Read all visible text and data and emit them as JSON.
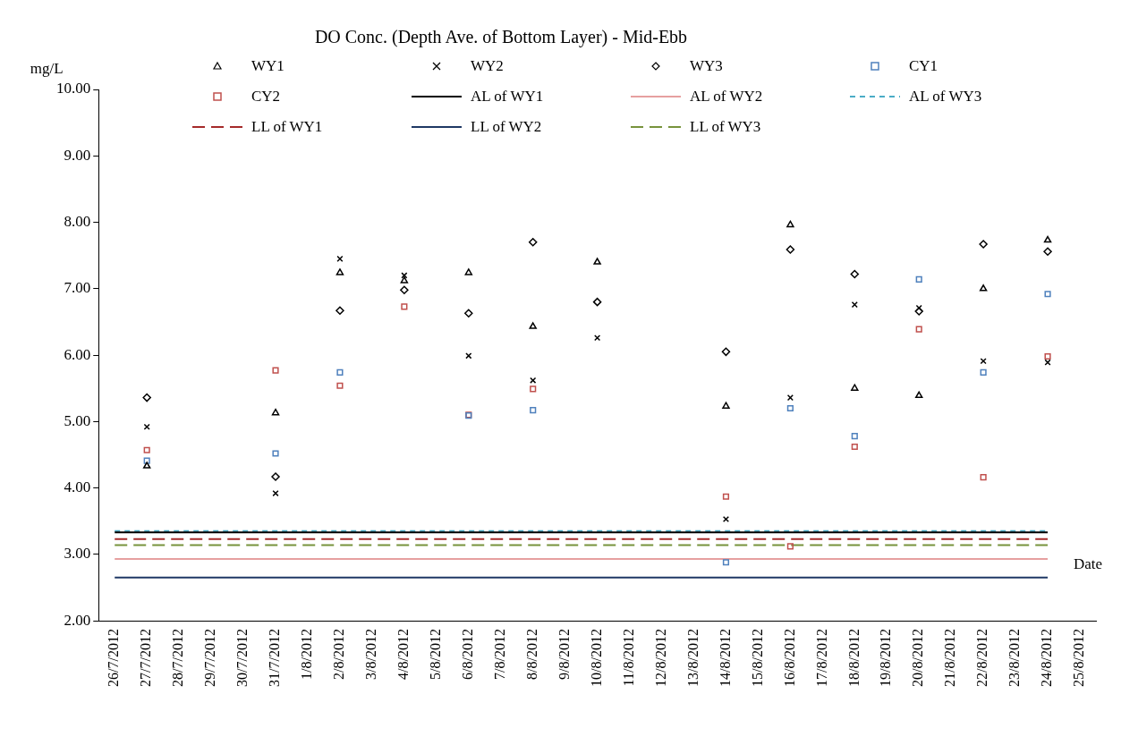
{
  "chart_data": {
    "type": "scatter",
    "title": "DO Conc. (Depth Ave. of Bottom Layer) - Mid-Ebb",
    "xlabel": "Date",
    "ylabel": "mg/L",
    "categories": [
      "26/7/2012",
      "27/7/2012",
      "28/7/2012",
      "29/7/2012",
      "30/7/2012",
      "31/7/2012",
      "1/8/2012",
      "2/8/2012",
      "3/8/2012",
      "4/8/2012",
      "5/8/2012",
      "6/8/2012",
      "7/8/2012",
      "8/8/2012",
      "9/8/2012",
      "10/8/2012",
      "11/8/2012",
      "12/8/2012",
      "13/8/2012",
      "14/8/2012",
      "15/8/2012",
      "16/8/2012",
      "17/8/2012",
      "18/8/2012",
      "19/8/2012",
      "20/8/2012",
      "21/8/2012",
      "22/8/2012",
      "23/8/2012",
      "24/8/2012",
      "25/8/2012"
    ],
    "ylim": [
      2,
      10
    ],
    "yticks": [
      {
        "value": 2,
        "label": "2.00"
      },
      {
        "value": 3,
        "label": "3.00"
      },
      {
        "value": 4,
        "label": "4.00"
      },
      {
        "value": 5,
        "label": "5.00"
      },
      {
        "value": 6,
        "label": "6.00"
      },
      {
        "value": 7,
        "label": "7.00"
      },
      {
        "value": 8,
        "label": "8.00"
      },
      {
        "value": 9,
        "label": "9.00"
      },
      {
        "value": 10,
        "label": "10.00"
      }
    ],
    "grid": false,
    "legend": "top",
    "series": [
      {
        "name": "WY1",
        "marker": "triangle",
        "color": "#000000",
        "values": [
          null,
          4.33,
          null,
          null,
          null,
          5.13,
          null,
          7.24,
          null,
          7.12,
          null,
          7.24,
          null,
          6.43,
          null,
          7.4,
          null,
          null,
          null,
          5.23,
          null,
          7.96,
          null,
          5.5,
          null,
          5.39,
          null,
          7.0,
          null,
          7.73,
          null
        ]
      },
      {
        "name": "WY2",
        "marker": "cross",
        "color": "#000000",
        "values": [
          null,
          4.92,
          null,
          null,
          null,
          3.92,
          null,
          7.45,
          null,
          7.2,
          null,
          5.99,
          null,
          5.62,
          null,
          6.26,
          null,
          null,
          null,
          3.53,
          null,
          5.36,
          null,
          6.76,
          null,
          6.71,
          null,
          5.91,
          null,
          5.89,
          null
        ]
      },
      {
        "name": "WY3",
        "marker": "diamond",
        "color": "#000000",
        "values": [
          null,
          5.36,
          null,
          null,
          null,
          4.17,
          null,
          6.67,
          null,
          6.98,
          null,
          6.63,
          null,
          7.7,
          null,
          6.8,
          null,
          null,
          null,
          6.05,
          null,
          7.59,
          null,
          7.22,
          null,
          6.66,
          null,
          7.67,
          null,
          7.56,
          null
        ]
      },
      {
        "name": "CY1",
        "marker": "square",
        "color": "#4f81bd",
        "values": [
          null,
          4.41,
          null,
          null,
          null,
          4.52,
          null,
          5.74,
          null,
          null,
          null,
          5.09,
          null,
          5.17,
          null,
          null,
          null,
          null,
          null,
          2.88,
          null,
          5.2,
          null,
          4.78,
          null,
          7.14,
          null,
          5.74,
          null,
          6.92,
          null
        ]
      },
      {
        "name": "CY2",
        "marker": "square",
        "color": "#c0504d",
        "values": [
          null,
          4.57,
          null,
          null,
          null,
          5.77,
          null,
          5.54,
          null,
          6.73,
          null,
          5.1,
          null,
          5.49,
          null,
          null,
          null,
          null,
          null,
          3.87,
          null,
          3.12,
          null,
          4.62,
          null,
          6.39,
          null,
          4.16,
          null,
          5.98,
          null
        ]
      },
      {
        "name": "AL of WY1",
        "type": "line",
        "line_style": "solid",
        "color": "#000000",
        "values": [
          3.33,
          3.33,
          3.33,
          3.33,
          3.33,
          3.33,
          3.33,
          3.33,
          3.33,
          3.33,
          3.33,
          3.33,
          3.33,
          3.33,
          3.33,
          3.33,
          3.33,
          3.33,
          3.33,
          3.33,
          3.33,
          3.33,
          3.33,
          3.33,
          3.33,
          3.33,
          3.33,
          3.33,
          3.33,
          3.33,
          null
        ]
      },
      {
        "name": "AL of WY2",
        "type": "line",
        "line_style": "solid",
        "color": "#e6a0a0",
        "values": [
          2.93,
          2.93,
          2.93,
          2.93,
          2.93,
          2.93,
          2.93,
          2.93,
          2.93,
          2.93,
          2.93,
          2.93,
          2.93,
          2.93,
          2.93,
          2.93,
          2.93,
          2.93,
          2.93,
          2.93,
          2.93,
          2.93,
          2.93,
          2.93,
          2.93,
          2.93,
          2.93,
          2.93,
          2.93,
          2.93,
          null
        ]
      },
      {
        "name": "AL of WY3",
        "type": "line",
        "line_style": "dotted",
        "color": "#4bacc6",
        "values": [
          3.35,
          3.35,
          3.35,
          3.35,
          3.35,
          3.35,
          3.35,
          3.35,
          3.35,
          3.35,
          3.35,
          3.35,
          3.35,
          3.35,
          3.35,
          3.35,
          3.35,
          3.35,
          3.35,
          3.35,
          3.35,
          3.35,
          3.35,
          3.35,
          3.35,
          3.35,
          3.35,
          3.35,
          3.35,
          3.35,
          null
        ]
      },
      {
        "name": "LL of WY1",
        "type": "line",
        "line_style": "dashed",
        "color": "#a52a2a",
        "values": [
          3.23,
          3.23,
          3.23,
          3.23,
          3.23,
          3.23,
          3.23,
          3.23,
          3.23,
          3.23,
          3.23,
          3.23,
          3.23,
          3.23,
          3.23,
          3.23,
          3.23,
          3.23,
          3.23,
          3.23,
          3.23,
          3.23,
          3.23,
          3.23,
          3.23,
          3.23,
          3.23,
          3.23,
          3.23,
          3.23,
          null
        ]
      },
      {
        "name": "LL of WY2",
        "type": "line",
        "line_style": "solid",
        "color": "#1f3864",
        "values": [
          2.65,
          2.65,
          2.65,
          2.65,
          2.65,
          2.65,
          2.65,
          2.65,
          2.65,
          2.65,
          2.65,
          2.65,
          2.65,
          2.65,
          2.65,
          2.65,
          2.65,
          2.65,
          2.65,
          2.65,
          2.65,
          2.65,
          2.65,
          2.65,
          2.65,
          2.65,
          2.65,
          2.65,
          2.65,
          2.65,
          null
        ]
      },
      {
        "name": "LL of WY3",
        "type": "line",
        "line_style": "dashed",
        "color": "#77933c",
        "values": [
          3.14,
          3.14,
          3.14,
          3.14,
          3.14,
          3.14,
          3.14,
          3.14,
          3.14,
          3.14,
          3.14,
          3.14,
          3.14,
          3.14,
          3.14,
          3.14,
          3.14,
          3.14,
          3.14,
          3.14,
          3.14,
          3.14,
          3.14,
          3.14,
          3.14,
          3.14,
          3.14,
          3.14,
          3.14,
          3.14,
          null
        ]
      }
    ]
  }
}
